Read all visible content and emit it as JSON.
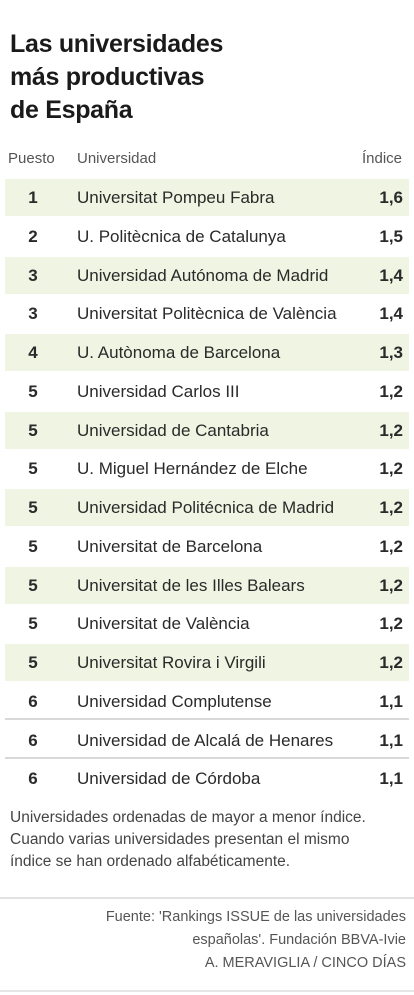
{
  "title_lines": [
    "Las universidades",
    "más productivas",
    "de España"
  ],
  "columns": {
    "rank": "Puesto",
    "university": "Universidad",
    "index": "Índice"
  },
  "chart_data": {
    "type": "table",
    "columns": [
      "Puesto",
      "Universidad",
      "Índice"
    ],
    "rows": [
      {
        "rank": "1",
        "university": "Universitat Pompeu Fabra",
        "index": "1,6"
      },
      {
        "rank": "2",
        "university": "U. Politècnica de Catalunya",
        "index": "1,5"
      },
      {
        "rank": "3",
        "university": "Universidad Autónoma de Madrid",
        "index": "1,4"
      },
      {
        "rank": "3",
        "university": "Universitat Politècnica de València",
        "index": "1,4"
      },
      {
        "rank": "4",
        "university": "U. Autònoma de Barcelona",
        "index": "1,3"
      },
      {
        "rank": "5",
        "university": "Universidad Carlos III",
        "index": "1,2"
      },
      {
        "rank": "5",
        "university": "Universidad de Cantabria",
        "index": "1,2"
      },
      {
        "rank": "5",
        "university": "U. Miguel Hernández de Elche",
        "index": "1,2"
      },
      {
        "rank": "5",
        "university": "Universidad Politécnica de Madrid",
        "index": "1,2"
      },
      {
        "rank": "5",
        "university": "Universitat de Barcelona",
        "index": "1,2"
      },
      {
        "rank": "5",
        "university": "Universitat de les Illes Balears",
        "index": "1,2"
      },
      {
        "rank": "5",
        "university": "Universitat de València",
        "index": "1,2"
      },
      {
        "rank": "5",
        "university": "Universitat Rovira i Virgili",
        "index": "1,2"
      },
      {
        "rank": "6",
        "university": "Universidad Complutense",
        "index": "1,1"
      },
      {
        "rank": "6",
        "university": "Universidad de Alcalá de Henares",
        "index": "1,1"
      },
      {
        "rank": "6",
        "university": "Universidad de Córdoba",
        "index": "1,1"
      }
    ]
  },
  "note_lines": [
    "Universidades ordenadas de mayor a menor índice.",
    "Cuando varias universidades presentan el mismo",
    "índice se han ordenado alfabéticamente."
  ],
  "source_lines": [
    "Fuente: 'Rankings ISSUE de las universidades",
    "españolas'. Fundación BBVA-Ivie",
    "A. MERAVIGLIA / CINCO DÍAS"
  ],
  "colors": {
    "row_shade": "#f0f4e2",
    "divider": "#d8d8d8"
  }
}
